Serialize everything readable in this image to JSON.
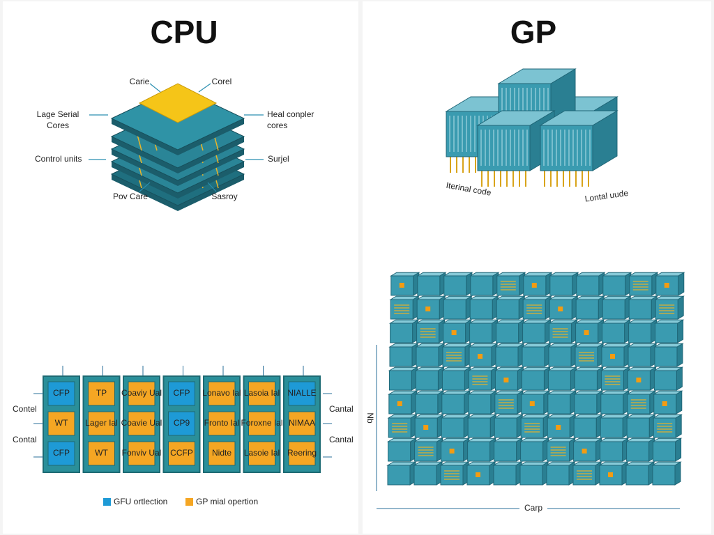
{
  "cpu": {
    "title": "CPU",
    "labels": [
      [
        "Carie"
      ],
      [
        "Corel"
      ],
      [
        "Lage Serial",
        "Cores"
      ],
      [
        "Heal conpler",
        "cores"
      ],
      [
        "Control units"
      ],
      [
        "Surjel"
      ],
      [
        "Pov Care"
      ],
      [
        "Sasroy"
      ]
    ]
  },
  "gpu": {
    "title": "GP",
    "labels": [
      "Iterinal code",
      "Lontal uude"
    ],
    "axis_y": "Nb",
    "axis_x": "Carp"
  },
  "chips": {
    "columns": [
      [
        {
          "label": "CFP",
          "color": "#1e9ad6"
        },
        {
          "label": "WT",
          "color": "#f5a623"
        },
        {
          "label": "CFP",
          "color": "#1e9ad6"
        }
      ],
      [
        {
          "label": "TP",
          "color": "#f5a623"
        },
        {
          "label": "Lager Ial",
          "color": "#f5a623"
        },
        {
          "label": "WT",
          "color": "#f5a623"
        }
      ],
      [
        {
          "label": "Coaviy Ual",
          "color": "#f5a623"
        },
        {
          "label": "Coavie Ual",
          "color": "#f5a623"
        },
        {
          "label": "Fonviv Ual",
          "color": "#f5a623"
        }
      ],
      [
        {
          "label": "CFP",
          "color": "#1e9ad6"
        },
        {
          "label": "CP9",
          "color": "#1e9ad6"
        },
        {
          "label": "CCFP",
          "color": "#f5a623"
        }
      ],
      [
        {
          "label": "Lonavo Ial",
          "color": "#f5a623"
        },
        {
          "label": "Fronto Ial",
          "color": "#f5a623"
        },
        {
          "label": "Nidte",
          "color": "#f5a623"
        }
      ],
      [
        {
          "label": "Lasoia Ial",
          "color": "#f5a623"
        },
        {
          "label": "Foroxne Ial",
          "color": "#f5a623"
        },
        {
          "label": "Lasoie Ial",
          "color": "#f5a623"
        }
      ],
      [
        {
          "label": "NIALLE",
          "color": "#1e9ad6"
        },
        {
          "label": "NIMAA",
          "color": "#f5a623"
        },
        {
          "label": "Reering",
          "color": "#f5a623"
        }
      ]
    ],
    "side_labels_left": [
      "Contel",
      "Contal"
    ],
    "side_labels_right": [
      "Cantal",
      "Cantal"
    ],
    "legend": [
      {
        "label": "GFU ortlection",
        "color": "#1e9ad6"
      },
      {
        "label": "GP mial opertion",
        "color": "#f5a623"
      }
    ]
  }
}
